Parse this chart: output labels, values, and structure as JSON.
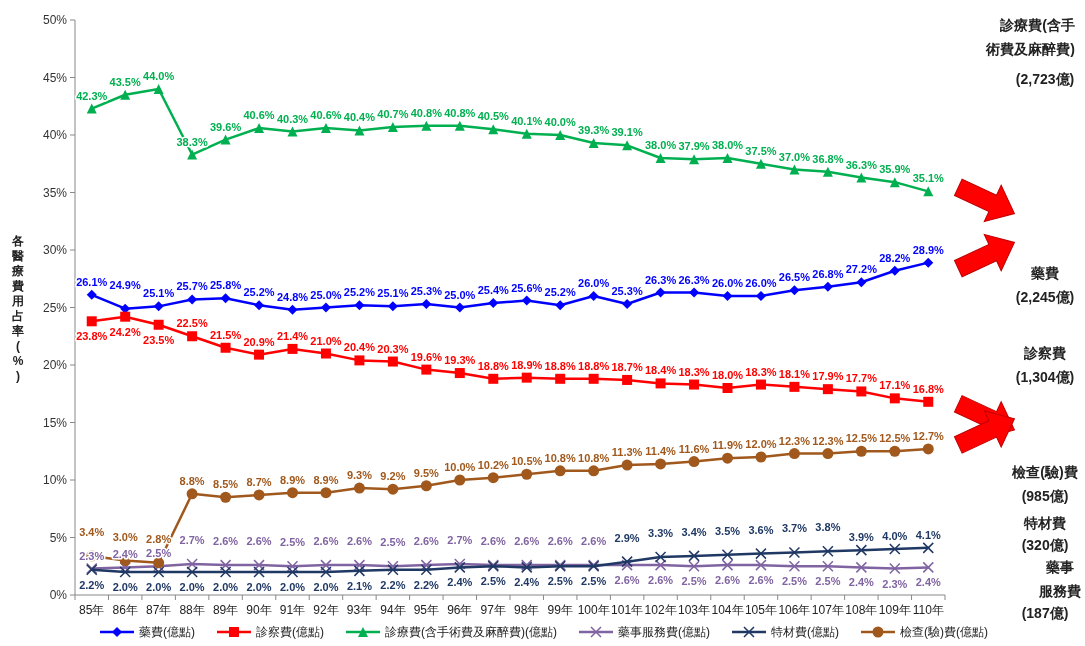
{
  "chart_data": {
    "type": "line",
    "ylabel": "各醫療費用占率(%)",
    "categories": [
      "85年",
      "86年",
      "87年",
      "88年",
      "89年",
      "90年",
      "91年",
      "92年",
      "93年",
      "94年",
      "95年",
      "96年",
      "97年",
      "98年",
      "99年",
      "100年",
      "101年",
      "102年",
      "103年",
      "104年",
      "105年",
      "106年",
      "107年",
      "108年",
      "109年",
      "110年"
    ],
    "ylim": [
      0,
      50
    ],
    "yticks": [
      {
        "value": 0,
        "label": "0%"
      },
      {
        "value": 5,
        "label": "5%"
      },
      {
        "value": 10,
        "label": "10%"
      },
      {
        "value": 15,
        "label": "15%"
      },
      {
        "value": 20,
        "label": "20%"
      },
      {
        "value": 25,
        "label": "25%"
      },
      {
        "value": 30,
        "label": "30%"
      },
      {
        "value": 35,
        "label": "35%"
      },
      {
        "value": 40,
        "label": "40%"
      },
      {
        "value": 45,
        "label": "45%"
      },
      {
        "value": 50,
        "label": "50%"
      }
    ],
    "legend": "bottom",
    "line_style": "solid",
    "series": [
      {
        "name": "藥費(億點)",
        "color": "#0000ff",
        "marker": "diamond",
        "values": [
          26.1,
          24.9,
          25.1,
          25.7,
          25.8,
          25.2,
          24.8,
          25.0,
          25.2,
          25.1,
          25.3,
          25.0,
          25.4,
          25.6,
          25.2,
          26.0,
          25.3,
          26.3,
          26.3,
          26.0,
          26.0,
          26.5,
          26.8,
          27.2,
          28.2,
          28.9
        ],
        "value_labels": [
          "26.1%",
          "24.9%",
          "25.1%",
          "25.7%",
          "25.8%",
          "25.2%",
          "24.8%",
          "25.0%",
          "25.2%",
          "25.1%",
          "25.3%",
          "25.0%",
          "25.4%",
          "25.6%",
          "25.2%",
          "26.0%",
          "25.3%",
          "26.3%",
          "26.3%",
          "26.0%",
          "26.0%",
          "26.5%",
          "26.8%",
          "27.2%",
          "28.2%",
          "28.9%"
        ]
      },
      {
        "name": "診察費(億點)",
        "color": "#ff0000",
        "marker": "square",
        "values": [
          23.8,
          24.2,
          23.5,
          22.5,
          21.5,
          20.9,
          21.4,
          21.0,
          20.4,
          20.3,
          19.6,
          19.3,
          18.8,
          18.9,
          18.8,
          18.8,
          18.7,
          18.4,
          18.3,
          18.0,
          18.3,
          18.1,
          17.9,
          17.7,
          17.1,
          16.8
        ],
        "value_labels": [
          "23.8%",
          "24.2%",
          "23.5%",
          "22.5%",
          "21.5%",
          "20.9%",
          "21.4%",
          "21.0%",
          "20.4%",
          "20.3%",
          "19.6%",
          "19.3%",
          "18.8%",
          "18.9%",
          "18.8%",
          "18.8%",
          "18.7%",
          "18.4%",
          "18.3%",
          "18.0%",
          "18.3%",
          "18.1%",
          "17.9%",
          "17.7%",
          "17.1%",
          "16.8%"
        ]
      },
      {
        "name": "診療費(含手術費及麻醉費)(億點)",
        "color": "#00b050",
        "marker": "triangle",
        "values": [
          42.3,
          43.5,
          44.0,
          38.3,
          39.6,
          40.6,
          40.3,
          40.6,
          40.4,
          40.7,
          40.8,
          40.8,
          40.5,
          40.1,
          40.0,
          39.3,
          39.1,
          38.0,
          37.9,
          38.0,
          37.5,
          37.0,
          36.8,
          36.3,
          35.9,
          35.1
        ],
        "value_labels": [
          "42.3%",
          "43.5%",
          "44.0%",
          "38.3%",
          "39.6%",
          "40.6%",
          "40.3%",
          "40.6%",
          "40.4%",
          "40.7%",
          "40.8%",
          "40.8%",
          "40.5%",
          "40.1%",
          "40.0%",
          "39.3%",
          "39.1%",
          "38.0%",
          "37.9%",
          "38.0%",
          "37.5%",
          "37.0%",
          "36.8%",
          "36.3%",
          "35.9%",
          "35.1%"
        ]
      },
      {
        "name": "藥事服務費(億點)",
        "color": "#8064a2",
        "marker": "cross",
        "values": [
          2.3,
          2.4,
          2.5,
          2.7,
          2.6,
          2.6,
          2.5,
          2.6,
          2.6,
          2.5,
          2.6,
          2.7,
          2.6,
          2.6,
          2.6,
          2.6,
          2.6,
          2.6,
          2.5,
          2.6,
          2.6,
          2.5,
          2.5,
          2.4,
          2.3,
          2.4
        ],
        "value_labels": [
          "2.3%",
          "2.4%",
          "2.5%",
          "2.7%",
          "2.6%",
          "2.6%",
          "2.5%",
          "2.6%",
          "2.6%",
          "2.5%",
          "2.6%",
          "2.7%",
          "2.6%",
          "2.6%",
          "2.6%",
          "2.6%",
          "2.6%",
          "2.6%",
          "2.5%",
          "2.6%",
          "2.6%",
          "2.5%",
          "2.5%",
          "2.4%",
          "2.3%",
          "2.4%"
        ]
      },
      {
        "name": "特材費(億點)",
        "color": "#1f3864",
        "marker": "cross",
        "values": [
          2.2,
          2.0,
          2.0,
          2.0,
          2.0,
          2.0,
          2.0,
          2.0,
          2.1,
          2.2,
          2.2,
          2.4,
          2.5,
          2.4,
          2.5,
          2.5,
          2.9,
          3.3,
          3.4,
          3.5,
          3.6,
          3.7,
          3.8,
          3.9,
          4.0,
          4.1
        ],
        "value_labels": [
          "2.2%",
          "2.0%",
          "2.0%",
          "2.0%",
          "2.0%",
          "2.0%",
          "2.0%",
          "2.0%",
          "2.1%",
          "2.2%",
          "2.2%",
          "2.4%",
          "2.5%",
          "2.4%",
          "2.5%",
          "2.5%",
          "2.9%",
          "3.3%",
          "3.4%",
          "3.5%",
          "3.6%",
          "3.7%",
          "3.8%",
          "3.9%",
          "4.0%",
          "4.1%"
        ]
      },
      {
        "name": "檢查(驗)費(億點)",
        "color": "#a0581c",
        "marker": "circle",
        "values": [
          3.4,
          3.0,
          2.8,
          8.8,
          8.5,
          8.7,
          8.9,
          8.9,
          9.3,
          9.2,
          9.5,
          10.0,
          10.2,
          10.5,
          10.8,
          10.8,
          11.3,
          11.4,
          11.6,
          11.9,
          12.0,
          12.3,
          12.3,
          12.5,
          12.5,
          12.7
        ],
        "value_labels": [
          "3.4%",
          "3.0%",
          "2.8%",
          "8.8%",
          "8.5%",
          "8.7%",
          "8.9%",
          "8.9%",
          "9.3%",
          "9.2%",
          "9.5%",
          "10.0%",
          "10.2%",
          "10.5%",
          "10.8%",
          "10.8%",
          "11.3%",
          "11.4%",
          "11.6%",
          "11.9%",
          "12.0%",
          "12.3%",
          "12.3%",
          "12.5%",
          "12.5%",
          "12.7%"
        ]
      }
    ],
    "annotations": [
      "診療費(含手術費及麻醉費)",
      "(2,723億)",
      "藥費",
      "(2,245億)",
      "診察費",
      "(1,304億)",
      "檢查(驗)費",
      "(985億)",
      "特材費",
      "(320億)",
      "藥事服務費",
      "(187億)"
    ]
  }
}
